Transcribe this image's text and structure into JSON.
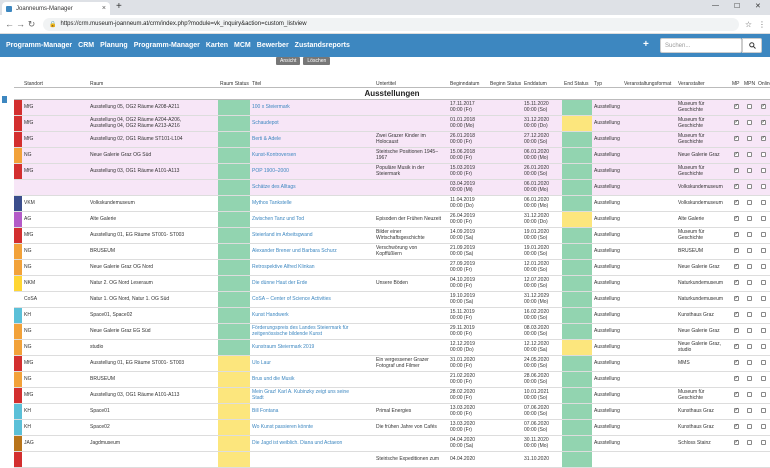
{
  "browser": {
    "tab_title": "Joanneums-Manager",
    "url": "https://crm.museum-joanneum.at/crm/index.php?module=vk_inquiry&action=custom_listview"
  },
  "nav": {
    "items": [
      "Programm-Manager",
      "CRM",
      "Planung",
      "Programm-Manager",
      "Karten",
      "MCM",
      "Bewerber",
      "Zustandsreports"
    ],
    "search_placeholder": "Suchen..."
  },
  "peek_buttons": [
    "Ansicht",
    "Löschen"
  ],
  "columns": [
    "Standort",
    "Raum",
    "Raum Status",
    "Titel",
    "Untertitel",
    "Beginndatum",
    "Beginn Status",
    "Enddatum",
    "End Status",
    "Typ",
    "Veranstaltungsformat",
    "Veranstalter",
    "MP",
    "MPN",
    "Online"
  ],
  "section_title": "Ausstellungen",
  "colors": {
    "nav_blue": "#3d87c0",
    "status_green": "#92d4b0",
    "status_yellow": "#fce67d",
    "row_pink": "#f7e6f7",
    "stripe_red": "#d32f2f",
    "stripe_orange": "#f2a23a",
    "stripe_navy": "#3b4d8c",
    "stripe_purple": "#b45bc8",
    "stripe_yellow": "#ffd633",
    "stripe_lightblue": "#5bc0d8",
    "stripe_brown": "#b8741a"
  },
  "rows": [
    {
      "standort": "MfG",
      "stripe": "#d32f2f",
      "raum": "Ausstellung 05, OG2 Räume A208-A211",
      "rs": "#92d4b0",
      "titel": "100 x Steiermark",
      "untertitel": "",
      "beginn": "17.11.2017\n00:00 (Fr)",
      "bs": "",
      "ende": "15.11.2020\n00:00 (So)",
      "es": "#92d4b0",
      "typ": "Ausstellung",
      "format": "",
      "veranstalter": "Museum für\nGeschichte",
      "mp": true,
      "mpn": false,
      "online": true,
      "pink": true
    },
    {
      "standort": "MfG",
      "stripe": "#d32f2f",
      "raum": "Ausstellung 04, OG2 Räume A204-A206,\nAusstellung 04, OG2 Räume A213-A216",
      "rs": "#92d4b0",
      "titel": "Schaudepot",
      "untertitel": "",
      "beginn": "01.01.2018\n00:00 (Mo)",
      "bs": "",
      "ende": "31.12.2020\n00:00 (Do)",
      "es": "#fce67d",
      "typ": "Ausstellung",
      "format": "",
      "veranstalter": "Museum für\nGeschichte",
      "mp": true,
      "mpn": false,
      "online": true,
      "pink": true
    },
    {
      "standort": "MfG",
      "stripe": "#d32f2f",
      "raum": "Ausstellung 02, OG1 Räume ST101-L104",
      "rs": "#92d4b0",
      "titel": "Berti & Adele",
      "untertitel": "Zwei Grazer Kinder im\nHolocaust",
      "beginn": "26.01.2018\n00:00 (Fr)",
      "bs": "",
      "ende": "27.12.2020\n00:00 (So)",
      "es": "#92d4b0",
      "typ": "Ausstellung",
      "format": "",
      "veranstalter": "Museum für\nGeschichte",
      "mp": true,
      "mpn": false,
      "online": true,
      "pink": true
    },
    {
      "standort": "NG",
      "stripe": "#f2a23a",
      "raum": "Neue Galerie Graz OG Süd",
      "rs": "#92d4b0",
      "titel": "Kunst-Kontroversen",
      "untertitel": "Steirische Positionen 1945–\n1967",
      "beginn": "15.06.2018\n00:00 (Fr)",
      "bs": "",
      "ende": "06.01.2020\n00:00 (Mo)",
      "es": "#92d4b0",
      "typ": "Ausstellung",
      "format": "",
      "veranstalter": "Neue Galerie Graz",
      "mp": true,
      "mpn": false,
      "online": false,
      "pink": true
    },
    {
      "standort": "MfG",
      "stripe": "#d32f2f",
      "raum": "Ausstellung 03, OG1 Räume A101-A113",
      "rs": "#92d4b0",
      "titel": "POP 1900–2000",
      "untertitel": "Populäre Musik in der\nSteiermark",
      "beginn": "15.03.2019\n00:00 (Fr)",
      "bs": "",
      "ende": "26.01.2020\n00:00 (So)",
      "es": "#92d4b0",
      "typ": "Ausstellung",
      "format": "",
      "veranstalter": "Museum für\nGeschichte",
      "mp": true,
      "mpn": false,
      "online": false,
      "pink": true
    },
    {
      "standort": "",
      "stripe": "",
      "raum": "",
      "rs": "#92d4b0",
      "titel": "Schätze des Alltags",
      "untertitel": "",
      "beginn": "03.04.2019\n00:00 (Mi)",
      "bs": "",
      "ende": "06.01.2020\n00:00 (Mo)",
      "es": "#92d4b0",
      "typ": "Ausstellung",
      "format": "",
      "veranstalter": "Volkskundemuseum",
      "mp": true,
      "mpn": false,
      "online": false,
      "pink": true
    },
    {
      "standort": "VKM",
      "stripe": "#3b4d8c",
      "raum": "Volkskundemuseum",
      "rs": "#92d4b0",
      "titel": "Mythos Tankstelle",
      "untertitel": "",
      "beginn": "11.04.2019\n00:00 (Do)",
      "bs": "",
      "ende": "06.01.2020\n00:00 (Mo)",
      "es": "#92d4b0",
      "typ": "Ausstellung",
      "format": "",
      "veranstalter": "Volkskundemuseum",
      "mp": true,
      "mpn": false,
      "online": false,
      "pink": false
    },
    {
      "standort": "AG",
      "stripe": "#b45bc8",
      "raum": "Alte Galerie",
      "rs": "#92d4b0",
      "titel": "Zwischen Tanz und Tod",
      "untertitel": "Episoden der Frühen Neuzeit",
      "beginn": "26.04.2019\n00:00 (Fr)",
      "bs": "",
      "ende": "31.12.2020\n00:00 (Do)",
      "es": "#fce67d",
      "typ": "Ausstellung",
      "format": "",
      "veranstalter": "Alte Galerie",
      "mp": true,
      "mpn": false,
      "online": false,
      "pink": false
    },
    {
      "standort": "MfG",
      "stripe": "#d32f2f",
      "raum": "Ausstellung 01, EG Räume ST001- ST003",
      "rs": "#92d4b0",
      "titel": "Steierland im Arbeitsgwand",
      "untertitel": "Bilder einer\nWirtschaftsgeschichte",
      "beginn": "14.09.2019\n00:00 (Sa)",
      "bs": "",
      "ende": "19.01.2020\n00:00 (So)",
      "es": "#92d4b0",
      "typ": "Ausstellung",
      "format": "",
      "veranstalter": "Museum für\nGeschichte",
      "mp": true,
      "mpn": false,
      "online": false,
      "pink": false
    },
    {
      "standort": "NG",
      "stripe": "#f2a23a",
      "raum": "BRUSEUM",
      "rs": "#92d4b0",
      "titel": "Alexander Brener und Barbara Schurz",
      "untertitel": "Verschwörung von\nKopffüßlern",
      "beginn": "21.09.2019\n00:00 (Sa)",
      "bs": "",
      "ende": "19.01.2020\n00:00 (So)",
      "es": "#92d4b0",
      "typ": "Ausstellung",
      "format": "",
      "veranstalter": "BRUSEUM",
      "mp": true,
      "mpn": false,
      "online": false,
      "pink": false
    },
    {
      "standort": "NG",
      "stripe": "#f2a23a",
      "raum": "Neue Galerie Graz OG Nord",
      "rs": "#92d4b0",
      "titel": "Retrospektive Alfred Klinkan",
      "untertitel": "",
      "beginn": "27.09.2019\n00:00 (Fr)",
      "bs": "",
      "ende": "12.01.2020\n00:00 (So)",
      "es": "#92d4b0",
      "typ": "Ausstellung",
      "format": "",
      "veranstalter": "Neue Galerie Graz",
      "mp": true,
      "mpn": false,
      "online": false,
      "pink": false
    },
    {
      "standort": "NKM",
      "stripe": "#ffd633",
      "raum": "Natur 2. OG Nord Leseraum",
      "rs": "#92d4b0",
      "titel": "Die dünne Haut der Erde",
      "untertitel": "Unsere Böden",
      "beginn": "04.10.2019\n00:00 (Fr)",
      "bs": "",
      "ende": "12.07.2020\n00:00 (So)",
      "es": "#92d4b0",
      "typ": "Ausstellung",
      "format": "",
      "veranstalter": "Naturkundemuseum",
      "mp": true,
      "mpn": false,
      "online": false,
      "pink": false
    },
    {
      "standort": "CoSA",
      "stripe": "",
      "raum": "Natur 1. OG Nord, Natur 1. OG Süd",
      "rs": "#92d4b0",
      "titel": "CoSA – Center of Science Activities",
      "untertitel": "",
      "beginn": "19.10.2019\n00:00 (Sa)",
      "bs": "",
      "ende": "31.12.2029\n00:00 (Mo)",
      "es": "#92d4b0",
      "typ": "Ausstellung",
      "format": "",
      "veranstalter": "Naturkundemuseum",
      "mp": true,
      "mpn": false,
      "online": false,
      "pink": false
    },
    {
      "standort": "KH",
      "stripe": "#5bc0d8",
      "raum": "Space01, Space02",
      "rs": "#92d4b0",
      "titel": "Kunst Handwerk",
      "untertitel": "",
      "beginn": "15.11.2019\n00:00 (Fr)",
      "bs": "",
      "ende": "16.02.2020\n00:00 (So)",
      "es": "#92d4b0",
      "typ": "Ausstellung",
      "format": "",
      "veranstalter": "Kunsthaus Graz",
      "mp": true,
      "mpn": false,
      "online": false,
      "pink": false
    },
    {
      "standort": "NG",
      "stripe": "#f2a23a",
      "raum": "Neue Galerie Graz EG Süd",
      "rs": "#92d4b0",
      "titel": "Förderungspreis des Landes Steiermark für\nzeitgenössische bildende Kunst",
      "untertitel": "",
      "beginn": "29.11.2019\n00:00 (Fr)",
      "bs": "",
      "ende": "08.03.2020\n00:00 (So)",
      "es": "#92d4b0",
      "typ": "Ausstellung",
      "format": "",
      "veranstalter": "Neue Galerie Graz",
      "mp": true,
      "mpn": false,
      "online": false,
      "pink": false
    },
    {
      "standort": "NG",
      "stripe": "#f2a23a",
      "raum": "studio",
      "rs": "#92d4b0",
      "titel": "Kunstraum Steiermark 2019",
      "untertitel": "",
      "beginn": "12.12.2019\n00:00 (Do)",
      "bs": "",
      "ende": "12.12.2020\n00:00 (Sa)",
      "es": "#fce67d",
      "typ": "Ausstellung",
      "format": "",
      "veranstalter": "Neue Galerie Graz,\nstudio",
      "mp": true,
      "mpn": false,
      "online": false,
      "pink": false
    },
    {
      "standort": "MfG",
      "stripe": "#d32f2f",
      "raum": "Ausstellung 01, EG Räume ST001- ST003",
      "rs": "#fce67d",
      "titel": "Ulo Laur",
      "untertitel": "Ein vergessener Grazer\nFotograf und Filmer",
      "beginn": "31.01.2020\n00:00 (Fr)",
      "bs": "",
      "ende": "24.05.2020\n00:00 (So)",
      "es": "#92d4b0",
      "typ": "Ausstellung",
      "format": "",
      "veranstalter": "MMS",
      "mp": true,
      "mpn": false,
      "online": false,
      "pink": false
    },
    {
      "standort": "NG",
      "stripe": "#f2a23a",
      "raum": "BRUSEUM",
      "rs": "#fce67d",
      "titel": "Brus und die Musik",
      "untertitel": "",
      "beginn": "21.02.2020\n00:00 (Fr)",
      "bs": "",
      "ende": "28.06.2020\n00:00 (So)",
      "es": "#92d4b0",
      "typ": "Ausstellung",
      "format": "",
      "veranstalter": "",
      "mp": true,
      "mpn": false,
      "online": false,
      "pink": false
    },
    {
      "standort": "MfG",
      "stripe": "#d32f2f",
      "raum": "Ausstellung 03, OG1 Räume A101-A113",
      "rs": "#fce67d",
      "titel": "Mein Graz! Karl A. Kubinzky zeigt uns seine\nStadt",
      "untertitel": "",
      "beginn": "28.02.2020\n00:00 (Fr)",
      "bs": "",
      "ende": "10.01.2021\n00:00 (So)",
      "es": "#92d4b0",
      "typ": "Ausstellung",
      "format": "",
      "veranstalter": "Museum für\nGeschichte",
      "mp": true,
      "mpn": false,
      "online": false,
      "pink": false
    },
    {
      "standort": "KH",
      "stripe": "#5bc0d8",
      "raum": "Space01",
      "rs": "#fce67d",
      "titel": "Bill Fontana",
      "untertitel": "Primal Energies",
      "beginn": "13.03.2020\n00:00 (Fr)",
      "bs": "",
      "ende": "07.06.2020\n00:00 (So)",
      "es": "#92d4b0",
      "typ": "Ausstellung",
      "format": "",
      "veranstalter": "Kunsthaus Graz",
      "mp": true,
      "mpn": false,
      "online": false,
      "pink": false
    },
    {
      "standort": "KH",
      "stripe": "#5bc0d8",
      "raum": "Space02",
      "rs": "#fce67d",
      "titel": "Wo Kunst passieren könnte",
      "untertitel": "Die frühen Jahre von Cafés",
      "beginn": "13.03.2020\n00:00 (Fr)",
      "bs": "",
      "ende": "07.06.2020\n00:00 (So)",
      "es": "#92d4b0",
      "typ": "Ausstellung",
      "format": "",
      "veranstalter": "Kunsthaus Graz",
      "mp": true,
      "mpn": false,
      "online": false,
      "pink": false
    },
    {
      "standort": "JAG",
      "stripe": "#b8741a",
      "raum": "Jagdmuseum",
      "rs": "#fce67d",
      "titel": "Die Jagd ist weiblich. Diana und Actaeon",
      "untertitel": "",
      "beginn": "04.04.2020\n00:00 (Sa)",
      "bs": "",
      "ende": "30.11.2020\n00:00 (Mo)",
      "es": "#92d4b0",
      "typ": "Ausstellung",
      "format": "",
      "veranstalter": "Schloss Stainz",
      "mp": true,
      "mpn": false,
      "online": false,
      "pink": false
    },
    {
      "standort": "",
      "stripe": "#d32f2f",
      "raum": "",
      "rs": "#fce67d",
      "titel": "",
      "untertitel": "Steirische Expeditionen zum",
      "beginn": "04.04.2020",
      "bs": "",
      "ende": "31.10.2020",
      "es": "#92d4b0",
      "typ": "",
      "format": "",
      "veranstalter": "",
      "mp": false,
      "mpn": false,
      "online": false,
      "pink": false
    }
  ]
}
